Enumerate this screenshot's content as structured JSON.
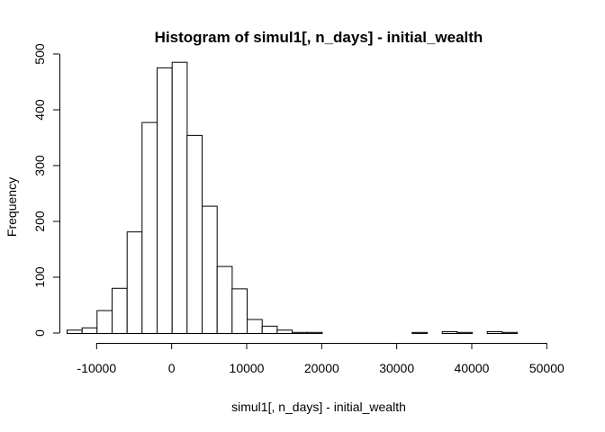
{
  "chart_data": {
    "type": "bar",
    "title": "Histogram of simul1[, n_days] - initial_wealth",
    "xlabel": "simul1[, n_days] - initial_wealth",
    "ylabel": "Frequency",
    "bin_width": 2000,
    "xlim": [
      -14000,
      52000
    ],
    "ylim": [
      0,
      500
    ],
    "x_ticks": [
      -10000,
      0,
      10000,
      20000,
      30000,
      40000,
      50000
    ],
    "y_ticks": [
      0,
      100,
      200,
      300,
      400,
      500
    ],
    "bin_starts": [
      -14000,
      -12000,
      -10000,
      -8000,
      -6000,
      -4000,
      -2000,
      0,
      2000,
      4000,
      6000,
      8000,
      10000,
      12000,
      14000,
      16000,
      18000,
      20000,
      22000,
      24000,
      26000,
      28000,
      30000,
      32000,
      34000,
      36000,
      38000,
      40000,
      42000,
      44000,
      46000,
      48000,
      50000
    ],
    "values": [
      6,
      10,
      41,
      81,
      182,
      378,
      476,
      486,
      355,
      228,
      120,
      80,
      25,
      13,
      6,
      2,
      2,
      0,
      0,
      0,
      0,
      0,
      0,
      2,
      0,
      3,
      2,
      0,
      3,
      2,
      0,
      0,
      0
    ],
    "grid": false
  }
}
